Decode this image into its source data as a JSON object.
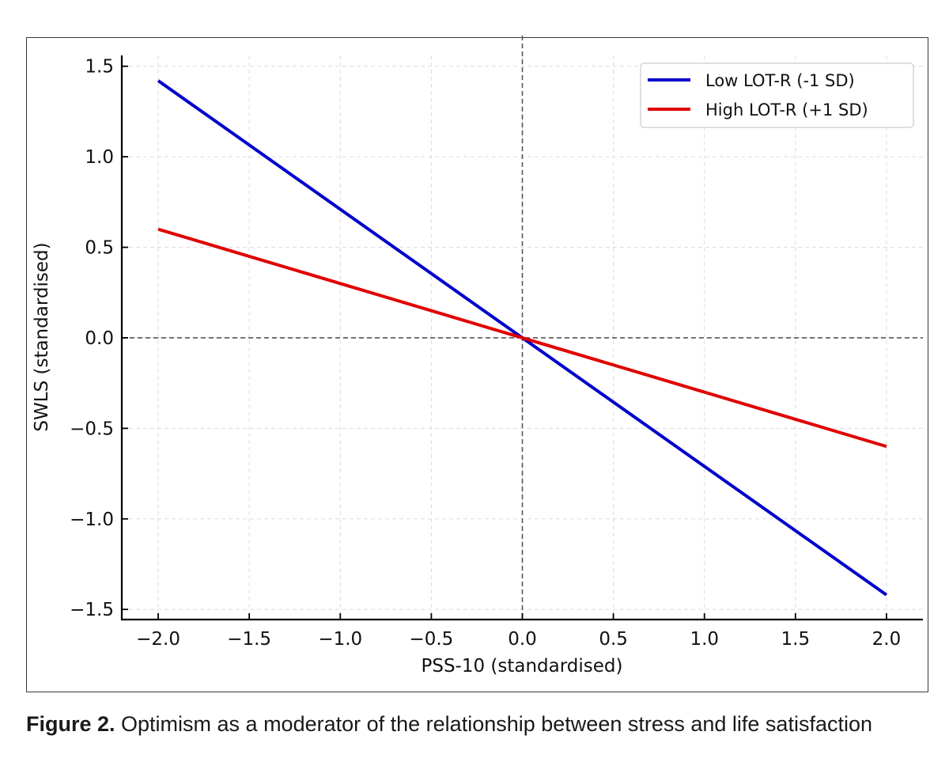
{
  "chart_data": {
    "type": "line",
    "title": "",
    "xlabel": "PSS-10 (standardised)",
    "ylabel": "SWLS (standardised)",
    "xlim": [
      -2.2,
      2.2
    ],
    "ylim": [
      -1.556,
      1.56
    ],
    "xticks": [
      -2.0,
      -1.5,
      -1.0,
      -0.5,
      0.0,
      0.5,
      1.0,
      1.5,
      2.0
    ],
    "xtick_labels": [
      "−2.0",
      "−1.5",
      "−1.0",
      "−0.5",
      "0.0",
      "0.5",
      "1.0",
      "1.5",
      "2.0"
    ],
    "yticks": [
      1.5,
      1.0,
      0.5,
      0.0,
      -0.5,
      -1.0,
      -1.5
    ],
    "ytick_labels": [
      "1.5",
      "1.0",
      "0.5",
      "0.0",
      "−0.5",
      "−1.0",
      "−1.5"
    ],
    "grid": true,
    "reference_lines": {
      "x": 0,
      "y": 0
    },
    "legend_position": "top-right",
    "series": [
      {
        "name": "Low LOT-R (-1 SD)",
        "color": "#0000cc",
        "x": [
          -2.0,
          2.0
        ],
        "y": [
          1.42,
          -1.42
        ]
      },
      {
        "name": "High LOT-R (+1 SD)",
        "color": "#e00000",
        "x": [
          -2.0,
          2.0
        ],
        "y": [
          0.6,
          -0.6
        ]
      }
    ]
  },
  "caption": {
    "label": "Figure 2.",
    "text": " Optimism as a moderator of the relationship between stress and life satisfaction"
  }
}
